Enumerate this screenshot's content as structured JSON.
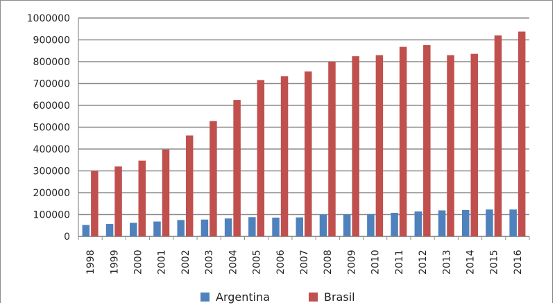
{
  "chart_data": {
    "type": "bar",
    "categories": [
      "1998",
      "1999",
      "2000",
      "2001",
      "2002",
      "2003",
      "2004",
      "2005",
      "2006",
      "2007",
      "2008",
      "2009",
      "2010",
      "2011",
      "2012",
      "2013",
      "2014",
      "2015",
      "2016"
    ],
    "series": [
      {
        "name": "Argentina",
        "color": "#4f81bd",
        "values": [
          52000,
          57000,
          62000,
          68000,
          75000,
          77000,
          82000,
          88000,
          86000,
          87000,
          100000,
          101000,
          102000,
          108000,
          114000,
          119000,
          121000,
          123000,
          123000
        ]
      },
      {
        "name": "Brasil",
        "color": "#c0504d",
        "values": [
          300000,
          320000,
          347000,
          398000,
          462000,
          528000,
          625000,
          716000,
          733000,
          755000,
          800000,
          825000,
          830000,
          868000,
          876000,
          830000,
          836000,
          920000,
          938000
        ]
      }
    ],
    "y_ticks": [
      "0",
      "100000",
      "200000",
      "300000",
      "400000",
      "500000",
      "600000",
      "700000",
      "800000",
      "900000",
      "1000000"
    ],
    "ylim": [
      0,
      1000000
    ],
    "title": "",
    "xlabel": "",
    "ylabel": "",
    "grid": true,
    "legend": "bottom"
  }
}
